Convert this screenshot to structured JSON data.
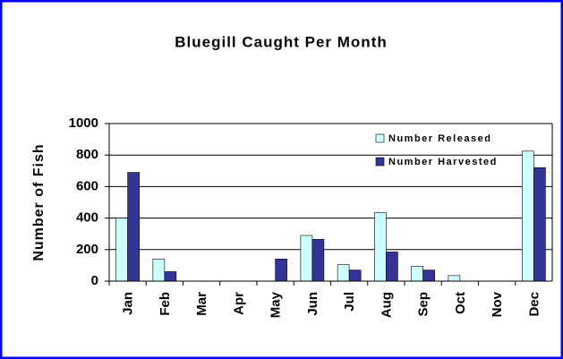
{
  "chart_data": {
    "type": "bar",
    "title": "Bluegill Caught Per Month",
    "y_label": "Number of Fish",
    "categories": [
      "Jan",
      "Feb",
      "Mar",
      "Apr",
      "May",
      "Jun",
      "Jul",
      "Aug",
      "Sep",
      "Oct",
      "Nov",
      "Dec"
    ],
    "series": [
      {
        "name": "Number Released",
        "color": "#ccffff",
        "values": [
          400,
          140,
          0,
          0,
          0,
          290,
          105,
          435,
          95,
          35,
          0,
          825
        ]
      },
      {
        "name": "Number Harvested",
        "color": "#333399",
        "values": [
          690,
          60,
          0,
          0,
          140,
          265,
          70,
          185,
          70,
          0,
          0,
          720
        ]
      }
    ],
    "ylim": [
      0,
      1000
    ],
    "yticks": [
      0,
      200,
      400,
      600,
      800,
      1000
    ],
    "grid": true,
    "legend": "upper right"
  }
}
